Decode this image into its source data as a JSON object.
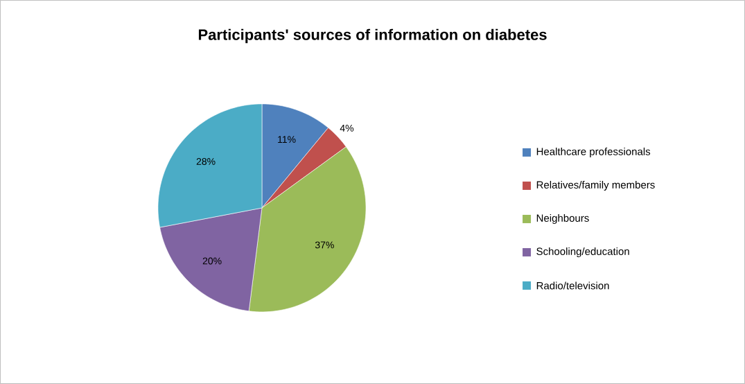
{
  "chart_data": {
    "type": "pie",
    "title": "Participants' sources of information on diabetes",
    "categories": [
      "Healthcare professionals",
      "Relatives/family members",
      "Neighbours",
      "Schooling/education",
      "Radio/television"
    ],
    "values": [
      11,
      4,
      37,
      20,
      28
    ],
    "value_labels": [
      "11%",
      "4%",
      "37%",
      "20%",
      "28%"
    ],
    "colors": [
      "#4f81bd",
      "#c0504d",
      "#9bbb59",
      "#8064a2",
      "#4bacc6"
    ],
    "legend": "right"
  }
}
